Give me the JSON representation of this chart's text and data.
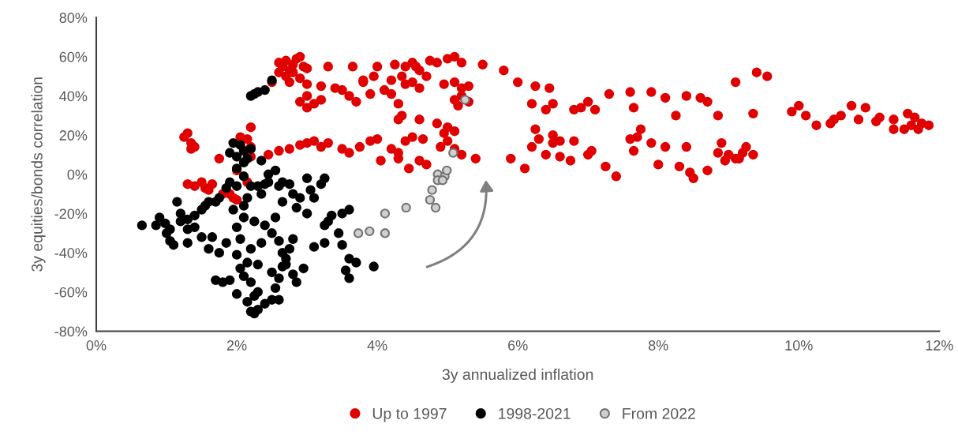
{
  "chart_data": {
    "type": "scatter",
    "xlabel": "3y annualized inflation",
    "ylabel": "3y equities/bonds correlation",
    "xlim": [
      0,
      12
    ],
    "ylim": [
      -80,
      80
    ],
    "xticks": [
      {
        "value": 0,
        "label": "0%"
      },
      {
        "value": 2,
        "label": "2%"
      },
      {
        "value": 4,
        "label": "4%"
      },
      {
        "value": 6,
        "label": "6%"
      },
      {
        "value": 8,
        "label": "8%"
      },
      {
        "value": 10,
        "label": "10%"
      },
      {
        "value": 12,
        "label": "12%"
      }
    ],
    "yticks": [
      {
        "value": -80,
        "label": "-80%"
      },
      {
        "value": -60,
        "label": "-60%"
      },
      {
        "value": -40,
        "label": "-40%"
      },
      {
        "value": -20,
        "label": "-20%"
      },
      {
        "value": 0,
        "label": "0%"
      },
      {
        "value": 20,
        "label": "20%"
      },
      {
        "value": 40,
        "label": "40%"
      },
      {
        "value": 60,
        "label": "60%"
      },
      {
        "value": 80,
        "label": "80%"
      }
    ],
    "grid": false,
    "legend": "bottom",
    "marker": "circle",
    "series": [
      {
        "name": "Up to 1997",
        "color": "#e00000",
        "x": [
          2.6,
          2.65,
          2.7,
          2.75,
          2.8,
          2.85,
          2.9,
          2.95,
          2.7,
          2.8,
          2.6,
          3.0,
          2.9,
          2.75,
          2.5,
          3.3,
          3.0,
          3.2,
          2.9,
          3.0,
          3.1,
          3.0,
          3.2,
          3.5,
          3.6,
          3.7,
          3.4,
          3.8,
          4.1,
          3.95,
          4.0,
          4.25,
          4.2,
          4.4,
          4.5,
          4.6,
          4.7,
          4.4,
          4.55,
          4.75,
          4.85,
          5.0,
          5.1,
          5.2,
          4.95,
          5.1,
          5.2,
          5.3,
          5.2,
          5.1,
          5.15,
          5.3,
          4.3,
          4.2,
          3.9,
          3.65,
          4.5,
          5.5,
          5.8,
          4.6,
          4.35,
          3.8,
          1.25,
          1.3,
          1.35,
          1.4,
          1.35,
          1.75,
          2.2,
          2.45,
          2.6,
          2.75,
          2.9,
          3.0,
          3.1,
          3.2,
          3.3,
          3.5,
          3.6,
          3.75,
          3.9,
          4.0,
          4.05,
          4.2,
          4.3,
          4.4,
          4.5,
          4.65,
          4.3,
          4.45,
          4.6,
          4.7,
          4.9,
          5.0,
          5.1,
          5.2,
          5.1,
          4.85,
          4.6,
          4.35,
          4.3,
          4.95,
          5.0,
          5.4,
          5.9,
          6.1,
          6.2,
          6.3,
          6.4,
          6.5,
          6.6,
          6.75,
          6.8,
          7.0,
          7.05,
          7.25,
          7.4,
          7.6,
          7.65,
          7.9,
          8.0,
          8.1,
          8.3,
          8.4,
          8.45,
          8.5,
          8.7,
          8.85,
          8.9,
          9.0,
          9.1,
          9.2,
          9.25,
          9.35,
          9.15,
          8.95,
          6.0,
          6.25,
          6.45,
          6.2,
          6.4,
          6.5,
          6.9,
          7.0,
          6.8,
          7.1,
          7.3,
          7.6,
          7.9,
          7.65,
          8.1,
          8.4,
          8.7,
          8.6,
          8.25,
          8.85,
          9.1,
          9.4,
          9.55,
          9.35,
          9.9,
          10.0,
          10.1,
          10.25,
          10.5,
          10.6,
          10.45,
          10.75,
          10.85,
          10.95,
          11.1,
          11.15,
          11.35,
          11.55,
          11.6,
          11.7,
          11.75,
          11.85,
          11.5,
          11.65,
          11.35,
          6.25,
          6.6,
          6.5,
          7.75,
          7.7,
          1.3,
          1.4,
          1.5,
          1.55,
          1.65,
          1.6,
          1.9,
          2.0,
          1.95,
          2.15,
          2.0,
          2.2,
          2.15,
          2.05,
          2.2,
          1.8
        ],
        "values": [
          57,
          55,
          58,
          53,
          56,
          59,
          60,
          55,
          50,
          52,
          52,
          54,
          49,
          47,
          47,
          55,
          46,
          45,
          37,
          40,
          36,
          34,
          38,
          43,
          40,
          37,
          44,
          47,
          43,
          50,
          55,
          56,
          48,
          46,
          47,
          44,
          50,
          55,
          55,
          58,
          57,
          59,
          60,
          57,
          46,
          47,
          44,
          45,
          40,
          38,
          35,
          37,
          36,
          41,
          41,
          55,
          57,
          56,
          53,
          53,
          50,
          48,
          19,
          21,
          16,
          14,
          13,
          8,
          14,
          10,
          12,
          13,
          15,
          16,
          17,
          14,
          16,
          13,
          11,
          14,
          17,
          18,
          7,
          13,
          11,
          17,
          19,
          18,
          8,
          3,
          7,
          5,
          14,
          17,
          13,
          10,
          22,
          26,
          28,
          30,
          28,
          21,
          24,
          8,
          8,
          3,
          14,
          18,
          10,
          16,
          9,
          7,
          17,
          10,
          12,
          4,
          -1,
          18,
          12,
          16,
          5,
          14,
          4,
          14,
          1,
          -2,
          2,
          11,
          16,
          10,
          8,
          11,
          14,
          10,
          8,
          7,
          47,
          45,
          44,
          36,
          33,
          36,
          34,
          37,
          33,
          33,
          41,
          42,
          42,
          34,
          39,
          40,
          37,
          39,
          30,
          30,
          47,
          52,
          50,
          31,
          32,
          35,
          30,
          25,
          28,
          30,
          26,
          35,
          28,
          34,
          27,
          29,
          28,
          31,
          25,
          23,
          26,
          25,
          23,
          29,
          23,
          23,
          17,
          20,
          23,
          19,
          -5,
          -6,
          -4,
          -7,
          -5,
          -8,
          -10,
          -13,
          -12,
          -4,
          2,
          9,
          18,
          19,
          24,
          -10
        ]
      },
      {
        "name": "1998-2021",
        "color": "#000000",
        "x": [
          2.2,
          2.25,
          2.3,
          2.4,
          2.5,
          1.95,
          2.05,
          2.1,
          1.9,
          2.0,
          2.2,
          2.15,
          2.1,
          2.35,
          2.0,
          2.1,
          1.9,
          1.85,
          2.0,
          2.2,
          2.3,
          2.4,
          2.45,
          2.55,
          2.35,
          2.15,
          2.1,
          1.95,
          1.75,
          1.7,
          1.6,
          1.55,
          1.5,
          1.4,
          1.3,
          1.2,
          1.05,
          1.0,
          1.05,
          1.1,
          0.98,
          0.9,
          0.65,
          0.85,
          1.2,
          1.15,
          1.3,
          1.4,
          1.5,
          1.3,
          1.6,
          1.75,
          1.85,
          1.65,
          1.7,
          1.9,
          1.8,
          2.0,
          2.05,
          2.1,
          2.2,
          2.25,
          2.3,
          2.15,
          2.2,
          2.25,
          2.3,
          2.4,
          2.5,
          2.6,
          2.55,
          2.5,
          2.6,
          2.65,
          2.7,
          2.75,
          2.65,
          2.8,
          2.6,
          2.5,
          2.35,
          2.2,
          2.05,
          2.0,
          2.1,
          2.25,
          2.4,
          2.55,
          2.0,
          2.15,
          2.3,
          2.7,
          2.8,
          2.95,
          2.85,
          2.65,
          2.8,
          2.75,
          2.6,
          2.85,
          3.0,
          3.1,
          3.05,
          3.2,
          3.25,
          3.0,
          2.9,
          3.25,
          3.3,
          3.35,
          3.5,
          3.6,
          3.45,
          3.5,
          3.6,
          3.7,
          3.55,
          3.95,
          3.6,
          3.25,
          3.1,
          2.45,
          2.65
        ],
        "values": [
          40,
          41,
          42,
          43,
          48,
          16,
          15,
          12,
          11,
          9,
          13,
          8,
          6,
          7,
          3,
          -1,
          -4,
          -7,
          -6,
          -6,
          -6,
          -5,
          0,
          2,
          -10,
          -12,
          -16,
          -18,
          -12,
          -14,
          -14,
          -16,
          -18,
          -21,
          -23,
          -24,
          -28,
          -30,
          -34,
          -36,
          -25,
          -22,
          -26,
          -26,
          -20,
          -14,
          -28,
          -27,
          -32,
          -35,
          -38,
          -40,
          -35,
          -32,
          -54,
          -54,
          -55,
          -61,
          -48,
          -52,
          -55,
          -62,
          -60,
          -65,
          -70,
          -71,
          -69,
          -66,
          -64,
          -64,
          -58,
          -50,
          -53,
          -47,
          -43,
          -38,
          -40,
          -33,
          -34,
          -30,
          -35,
          -38,
          -33,
          -27,
          -22,
          -24,
          -26,
          -22,
          -41,
          -45,
          -46,
          -46,
          -51,
          -48,
          -55,
          -14,
          -10,
          -5,
          -6,
          -17,
          -20,
          -12,
          -8,
          -5,
          -2,
          -2,
          -12,
          -26,
          -24,
          -21,
          -20,
          -18,
          -30,
          -36,
          -43,
          -45,
          -49,
          -47,
          -53,
          -35,
          -37,
          -4,
          -4
        ]
      },
      {
        "name": "From 2022",
        "color": "#d0d0d0",
        "x": [
          3.73,
          3.89,
          4.11,
          4.11,
          4.41,
          4.75,
          4.83,
          4.78,
          4.86,
          4.86,
          4.96,
          4.93,
          4.99,
          5.08,
          5.25
        ],
        "values": [
          -30,
          -29,
          -30,
          -20,
          -17,
          -13,
          -17,
          -8,
          0,
          -3,
          -1,
          -3,
          2,
          11,
          38
        ]
      }
    ]
  }
}
